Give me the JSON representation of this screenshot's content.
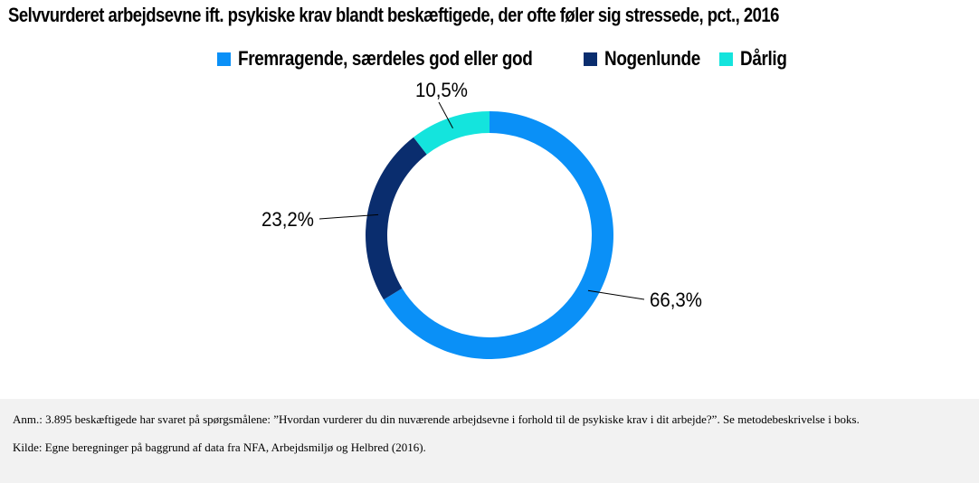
{
  "title": "Selvvurderet arbejdsevne ift. psykiske krav blandt beskæftigede, der ofte føler sig stressede, pct., 2016",
  "legend": [
    {
      "label": "Fremragende, særdeles god eller god",
      "color": "#0a90f7"
    },
    {
      "label": "Nogenlunde",
      "color": "#0a2d6e"
    },
    {
      "label": "Dårlig",
      "color": "#14e4dd"
    }
  ],
  "chart_data": {
    "type": "pie",
    "variant": "donut",
    "categories": [
      "Fremragende, særdeles god eller god",
      "Nogenlunde",
      "Dårlig"
    ],
    "values": [
      66.3,
      23.2,
      10.5
    ],
    "labels": [
      "66,3%",
      "23,2%",
      "10,5%"
    ],
    "colors": [
      "#0a90f7",
      "#0a2d6e",
      "#14e4dd"
    ],
    "legend_position": "top"
  },
  "note": {
    "anm": "Anm.: 3.895 beskæftigede har svaret på spørgsmålene: ”Hvordan vurderer du din nuværende arbejdsevne i forhold til de psykiske krav i dit arbejde?”. Se metodebeskrivelse i boks.",
    "kilde": "Kilde: Egne beregninger på baggrund af data fra NFA, Arbejdsmiljø og Helbred (2016)."
  }
}
